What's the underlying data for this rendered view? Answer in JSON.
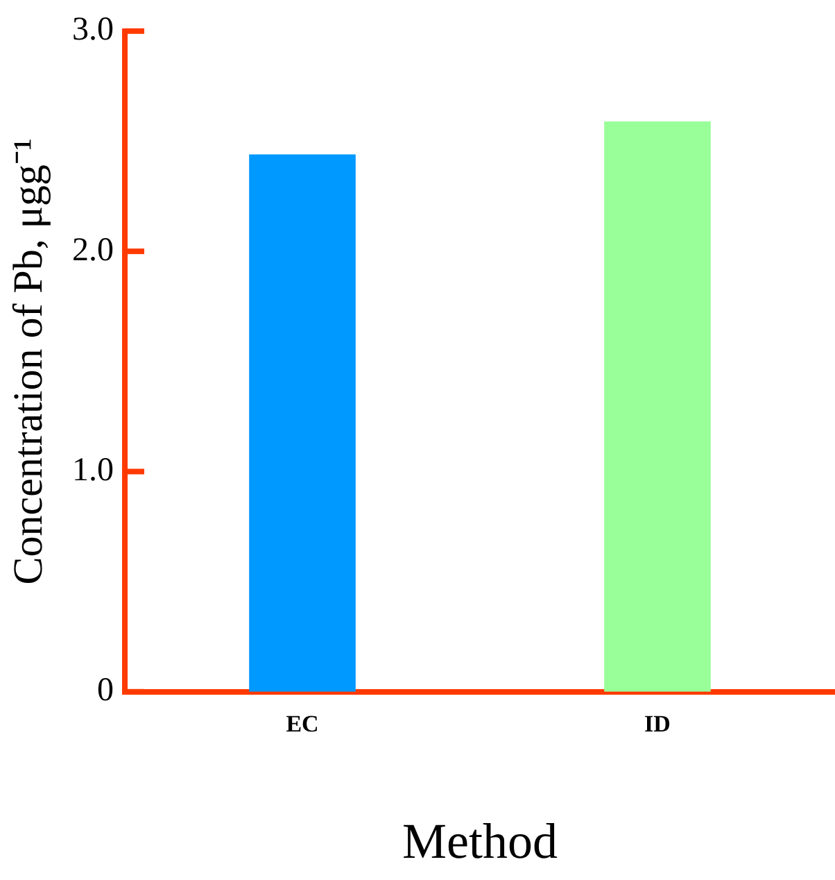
{
  "chart_data": {
    "type": "bar",
    "xlabel": "Method",
    "ylabel": "Concentration of Pb, μgg⁻¹",
    "categories": [
      "EC",
      "ID"
    ],
    "values": [
      2.44,
      2.59
    ],
    "colors": [
      "#0099ff",
      "#99ff99"
    ],
    "ylim": [
      0,
      3.0
    ],
    "yticks": [
      {
        "value": 0,
        "label": "0"
      },
      {
        "value": 1,
        "label": "1.0"
      },
      {
        "value": 2,
        "label": "2.0"
      },
      {
        "value": 3,
        "label": "3.0"
      }
    ],
    "grid": false,
    "legend": false
  }
}
